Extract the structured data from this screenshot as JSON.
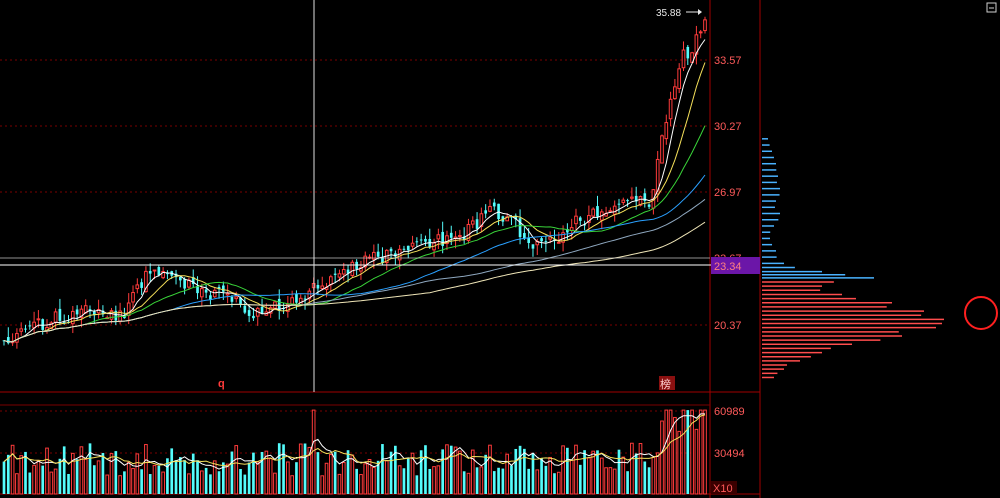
{
  "price_axis": {
    "labels": [
      "33.57",
      "30.27",
      "26.97",
      "20.37"
    ],
    "current_price": "23.34",
    "high_marker": "35.88",
    "hidden_label": "23.67"
  },
  "volume_axis": {
    "labels": [
      "60989",
      "30494"
    ],
    "multiplier": "X10"
  },
  "markers": {
    "q_label": "q",
    "bang_label": "榜"
  },
  "colors": {
    "up": "#ff3b3b",
    "down": "#54fcfc",
    "grid": "#7a0000",
    "axis_text": "#ff5a5a",
    "ma5": "#ffffff",
    "ma10": "#f5e05a",
    "ma20": "#39d439",
    "ma60": "#2aa0ff",
    "ma120": "#8fa8c0",
    "ma250": "#f0e6b8",
    "profile_up": "#ff4d4d",
    "profile_down": "#4ab2ff",
    "current_box": "#6b16a8"
  },
  "chart_data": {
    "type": "candlestick",
    "price_range": [
      17.8,
      36.4
    ],
    "volume_range": [
      0,
      70000
    ],
    "high_value": 35.88,
    "current_value": 23.34,
    "seed": 20240501,
    "waypoints": [
      [
        0,
        20.3
      ],
      [
        10,
        21.2
      ],
      [
        20,
        21.8
      ],
      [
        28,
        21.5
      ],
      [
        34,
        23.8
      ],
      [
        40,
        23.3
      ],
      [
        46,
        22.6
      ],
      [
        52,
        22.5
      ],
      [
        58,
        21.6
      ],
      [
        64,
        22.0
      ],
      [
        70,
        22.5
      ],
      [
        78,
        23.5
      ],
      [
        86,
        24.2
      ],
      [
        96,
        24.9
      ],
      [
        106,
        25.3
      ],
      [
        114,
        26.6
      ],
      [
        118,
        26.0
      ],
      [
        124,
        24.8
      ],
      [
        130,
        25.4
      ],
      [
        134,
        26.1
      ],
      [
        140,
        26.6
      ],
      [
        146,
        27.2
      ],
      [
        150,
        26.9
      ],
      [
        152,
        28.5
      ],
      [
        156,
        33.0
      ],
      [
        160,
        34.5
      ],
      [
        163,
        35.5
      ]
    ],
    "profile_rows": [
      {
        "price": 30.0,
        "length": 6,
        "side": "down"
      },
      {
        "price": 29.4,
        "length": 10,
        "side": "down"
      },
      {
        "price": 28.8,
        "length": 14,
        "side": "down"
      },
      {
        "price": 28.2,
        "length": 16,
        "side": "down"
      },
      {
        "price": 27.6,
        "length": 18,
        "side": "down"
      },
      {
        "price": 27.0,
        "length": 14,
        "side": "down"
      },
      {
        "price": 26.4,
        "length": 18,
        "side": "down"
      },
      {
        "price": 25.8,
        "length": 12,
        "side": "down"
      },
      {
        "price": 25.2,
        "length": 8,
        "side": "down"
      },
      {
        "price": 24.6,
        "length": 14,
        "side": "down"
      },
      {
        "price": 24.0,
        "length": 22,
        "side": "down"
      },
      {
        "price": 23.6,
        "length": 60,
        "side": "down"
      },
      {
        "price": 23.3,
        "length": 112,
        "side": "down"
      },
      {
        "price": 22.9,
        "length": 60,
        "side": "up"
      },
      {
        "price": 22.5,
        "length": 80,
        "side": "up"
      },
      {
        "price": 22.1,
        "length": 130,
        "side": "up"
      },
      {
        "price": 21.7,
        "length": 162,
        "side": "up"
      },
      {
        "price": 21.3,
        "length": 182,
        "side": "up"
      },
      {
        "price": 20.9,
        "length": 174,
        "side": "up"
      },
      {
        "price": 20.5,
        "length": 140,
        "side": "up"
      },
      {
        "price": 20.1,
        "length": 90,
        "side": "up"
      },
      {
        "price": 19.7,
        "length": 60,
        "side": "up"
      },
      {
        "price": 19.3,
        "length": 38,
        "side": "up"
      },
      {
        "price": 18.9,
        "length": 22,
        "side": "up"
      },
      {
        "price": 18.5,
        "length": 12,
        "side": "up"
      }
    ]
  }
}
